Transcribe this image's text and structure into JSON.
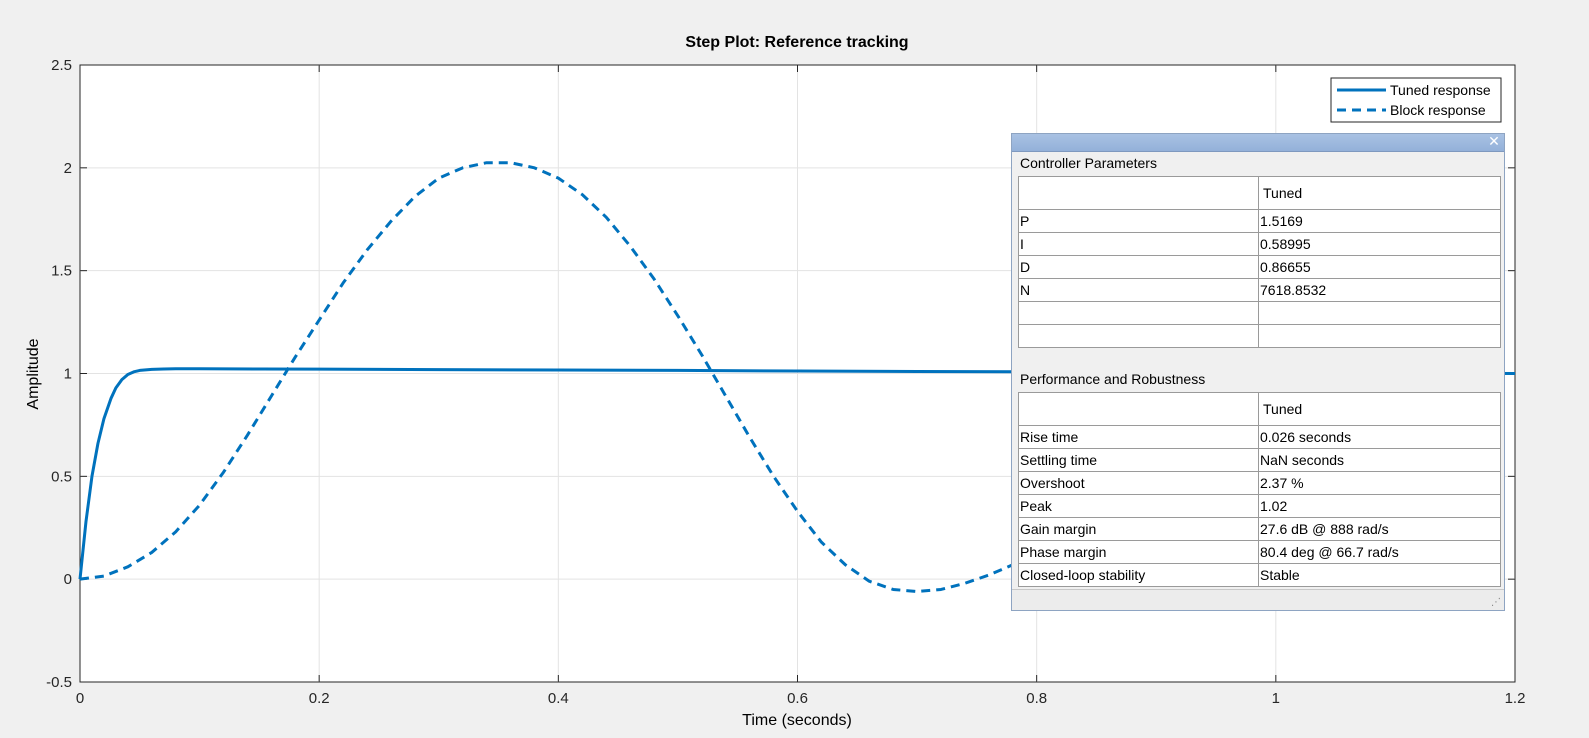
{
  "chart_data": {
    "type": "line",
    "title": "Step Plot: Reference tracking",
    "xlabel": "Time (seconds)",
    "ylabel": "Amplitude",
    "xlim": [
      0,
      1.2
    ],
    "ylim": [
      -0.5,
      2.5
    ],
    "xticks": [
      "0",
      "0.2",
      "0.4",
      "0.6",
      "0.8",
      "1",
      "1.2"
    ],
    "yticks": [
      "-0.5",
      "0",
      "0.5",
      "1",
      "1.5",
      "2",
      "2.5"
    ],
    "grid": true,
    "legend_position": "top-right",
    "series": [
      {
        "name": "Tuned response",
        "style": "solid",
        "color": "#0072bd",
        "x": [
          0,
          0.005,
          0.01,
          0.015,
          0.02,
          0.026,
          0.03,
          0.035,
          0.04,
          0.045,
          0.05,
          0.06,
          0.07,
          0.08,
          0.1,
          0.15,
          0.2,
          0.3,
          0.4,
          0.5,
          0.6,
          0.7,
          0.8,
          0.9,
          1.0,
          1.1,
          1.2
        ],
        "y": [
          0,
          0.28,
          0.5,
          0.66,
          0.78,
          0.88,
          0.93,
          0.97,
          0.995,
          1.008,
          1.015,
          1.02,
          1.022,
          1.023,
          1.023,
          1.022,
          1.021,
          1.019,
          1.017,
          1.015,
          1.012,
          1.01,
          1.008,
          1.006,
          1.004,
          1.002,
          1.0
        ]
      },
      {
        "name": "Block response",
        "style": "dashed",
        "color": "#0072bd",
        "x": [
          0,
          0.02,
          0.04,
          0.06,
          0.08,
          0.1,
          0.12,
          0.14,
          0.16,
          0.18,
          0.2,
          0.22,
          0.24,
          0.26,
          0.28,
          0.3,
          0.32,
          0.34,
          0.36,
          0.38,
          0.4,
          0.42,
          0.44,
          0.46,
          0.48,
          0.5,
          0.52,
          0.54,
          0.56,
          0.58,
          0.6,
          0.62,
          0.64,
          0.66,
          0.68,
          0.7,
          0.72,
          0.74,
          0.76,
          0.78,
          0.8
        ],
        "y": [
          0,
          0.015,
          0.06,
          0.13,
          0.23,
          0.36,
          0.52,
          0.7,
          0.89,
          1.08,
          1.26,
          1.44,
          1.6,
          1.74,
          1.86,
          1.95,
          2.0,
          2.025,
          2.025,
          2.0,
          1.95,
          1.87,
          1.76,
          1.62,
          1.46,
          1.28,
          1.09,
          0.89,
          0.69,
          0.5,
          0.33,
          0.18,
          0.07,
          -0.01,
          -0.05,
          -0.06,
          -0.05,
          -0.02,
          0.02,
          0.07,
          0.13
        ]
      }
    ]
  },
  "panel": {
    "close_glyph": "✕",
    "controller_section": "Controller Parameters",
    "controller_header": "Tuned",
    "controller_rows": [
      {
        "name": "P",
        "value": "1.5169"
      },
      {
        "name": "I",
        "value": "0.58995"
      },
      {
        "name": "D",
        "value": "0.86655"
      },
      {
        "name": "N",
        "value": "7618.8532"
      },
      {
        "name": "",
        "value": ""
      },
      {
        "name": "",
        "value": ""
      }
    ],
    "performance_section": "Performance and Robustness",
    "performance_header": "Tuned",
    "performance_rows": [
      {
        "name": "Rise time",
        "value": "0.026 seconds"
      },
      {
        "name": "Settling time",
        "value": "NaN seconds"
      },
      {
        "name": "Overshoot",
        "value": "2.37 %"
      },
      {
        "name": "Peak",
        "value": "1.02"
      },
      {
        "name": "Gain margin",
        "value": "27.6 dB @ 888 rad/s"
      },
      {
        "name": "Phase margin",
        "value": "80.4 deg @ 66.7 rad/s"
      },
      {
        "name": "Closed-loop stability",
        "value": "Stable"
      }
    ]
  }
}
